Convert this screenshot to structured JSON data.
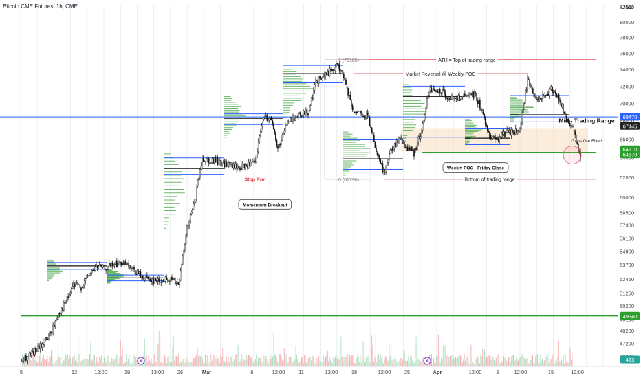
{
  "header": {
    "symbol_title": "Bitcoin CME Futures, 1h, CME",
    "currency": "USD"
  },
  "colors": {
    "candle": "#111111",
    "level_blue": "#2962ff",
    "level_red": "#e03040",
    "level_green": "#2ca02c",
    "profile_green": "#3aa13a",
    "grid": "#e7e9f0",
    "zone_fill": "#f8dcc0",
    "axis_text": "#444444",
    "price_tag": "#222222",
    "tag_blue": "#2962ff",
    "tag_green": "#2ca02c",
    "tag_teal": "#26a69a",
    "volume_red": "#f0a0a0",
    "volume_green": "#a0d8b8",
    "event_purple": "#7b3fc4"
  },
  "chart_data": {
    "type": "candlestick",
    "title": "Bitcoin CME Futures, 1h, CME",
    "ylabel": "USD",
    "ylim": [
      45500,
      82200
    ],
    "y_scale": "log",
    "grid": true,
    "y_ticks": [
      "82000",
      "80000",
      "78000",
      "76000",
      "74000",
      "72000",
      "70000",
      "68000",
      "66000",
      "64000",
      "62000",
      "60000",
      "58500",
      "57300",
      "56100",
      "54900",
      "53700",
      "52450",
      "51250",
      "50200",
      "49100",
      "48200",
      "47200",
      "46200"
    ],
    "x_ticks": [
      "5",
      "12",
      "12:00",
      "19",
      "13:00",
      "26",
      "Mar",
      "6",
      "12:00",
      "11",
      "12:00",
      "18",
      "12:00",
      "25",
      "Apr",
      "12:00",
      "8",
      "12:00",
      "15",
      "12:00"
    ],
    "x_range": [
      "Feb 5",
      "Apr 17"
    ],
    "price_path": [
      [
        "Feb 5",
        45800
      ],
      [
        "Feb 7",
        46600
      ],
      [
        "Feb 9",
        48000
      ],
      [
        "Feb 10",
        49600
      ],
      [
        "Feb 11",
        50500
      ],
      [
        "Feb 12",
        52000
      ],
      [
        "Feb 13",
        51800
      ],
      [
        "Feb 14",
        52800
      ],
      [
        "Feb 15",
        53600
      ],
      [
        "Feb 16",
        53400
      ],
      [
        "Feb 18",
        53900
      ],
      [
        "Feb 20",
        53200
      ],
      [
        "Feb 21",
        52700
      ],
      [
        "Feb 23",
        52300
      ],
      [
        "Feb 25",
        52400
      ],
      [
        "Feb 26",
        52300
      ],
      [
        "Feb 27",
        57000
      ],
      [
        "Feb 28",
        59500
      ],
      [
        "Feb 29",
        64000
      ],
      [
        "Mar 1",
        63000
      ],
      [
        "Mar 3",
        63500
      ],
      [
        "Mar 4",
        68200
      ],
      [
        "Mar 5",
        68500
      ],
      [
        "Mar 6",
        65000
      ],
      [
        "Mar 7",
        67500
      ],
      [
        "Mar 8",
        68400
      ],
      [
        "Mar 10",
        69000
      ],
      [
        "Mar 11",
        72500
      ],
      [
        "Mar 13",
        73800
      ],
      [
        "Mar 14",
        74600
      ],
      [
        "Mar 15",
        72000
      ],
      [
        "Mar 16",
        69000
      ],
      [
        "Mar 18",
        68400
      ],
      [
        "Mar 19",
        64500
      ],
      [
        "Mar 20",
        62500
      ],
      [
        "Mar 21",
        65000
      ],
      [
        "Mar 22",
        66000
      ],
      [
        "Mar 24",
        64500
      ],
      [
        "Mar 25",
        67000
      ],
      [
        "Mar 26",
        71500
      ],
      [
        "Mar 28",
        71200
      ],
      [
        "Mar 29",
        70500
      ],
      [
        "Mar 31",
        70800
      ],
      [
        "Apr 1",
        71200
      ],
      [
        "Apr 2",
        69000
      ],
      [
        "Apr 3",
        66400
      ],
      [
        "Apr 4",
        66000
      ],
      [
        "Apr 5",
        66600
      ],
      [
        "Apr 7",
        67000
      ],
      [
        "Apr 8",
        72800
      ],
      [
        "Apr 9",
        70800
      ],
      [
        "Apr 10",
        70600
      ],
      [
        "Apr 11",
        71600
      ],
      [
        "Apr 12",
        71000
      ],
      [
        "Apr 13",
        68500
      ],
      [
        "Apr 14",
        67000
      ],
      [
        "Apr 15",
        64200
      ]
    ],
    "price_tags": [
      {
        "value": "68470",
        "color": "#2962ff",
        "price": 68470
      },
      {
        "value": "67445",
        "color": "#222222",
        "price": 67445
      },
      {
        "value": "64910",
        "color": "#2ca02c",
        "price": 64910
      },
      {
        "value": "64370",
        "color": "#2ca02c",
        "price": 64370
      },
      {
        "value": "49396",
        "color": "#2ca02c",
        "price": 49396
      },
      {
        "value": "49340",
        "color": "#2ca02c",
        "price": 49340
      },
      {
        "value": "423",
        "color": "#26a69a",
        "price": 46450
      }
    ],
    "levels": [
      {
        "label": "ATH = Top of trading range",
        "price": 75200,
        "color": "#e03040",
        "from": "Mar 14",
        "to": "Apr 17"
      },
      {
        "label": "Market Reversal @ Weekly POC",
        "price": 73500,
        "color": "#e03040",
        "from": "Mar 16",
        "to": "Apr 8"
      },
      {
        "label": "Bottom of trading range",
        "price": 61800,
        "color": "#e03040",
        "from": "Mar 20",
        "to": "Apr 17"
      },
      {
        "label": "",
        "price": 49390,
        "color": "#2ca02c",
        "from": "Feb 10",
        "to": "Apr 19"
      },
      {
        "label": "",
        "price": 64600,
        "color": "#2ca02c",
        "from": "Mar 25",
        "to": "Apr 17"
      },
      {
        "label": "",
        "price": 68450,
        "color": "#2962ff",
        "from": "Feb 4",
        "to": "Apr 19"
      }
    ],
    "fib_labels": [
      {
        "text": "1 (75185)",
        "price": 75185,
        "at": "Mar 12"
      },
      {
        "text": "0 (61790)",
        "price": 61790,
        "at": "Mar 12"
      }
    ],
    "annotations": [
      {
        "text": "Stop Run",
        "kind": "red_text",
        "price": 61600,
        "at": "Mar 3"
      },
      {
        "text": "Momentum Breakout",
        "kind": "callout",
        "price": 59300,
        "at": "Mar 1"
      },
      {
        "text": "Weekly POC - Friday Close",
        "kind": "callout",
        "price": 63000,
        "at": "Mar 28"
      },
      {
        "text": "Mid - Trading Range",
        "kind": "bold_text",
        "price": 67800,
        "at": "Apr 16"
      },
      {
        "text": "Gaps Get Filled",
        "kind": "small_text",
        "price": 65900,
        "at": "Apr 16"
      }
    ]
  }
}
